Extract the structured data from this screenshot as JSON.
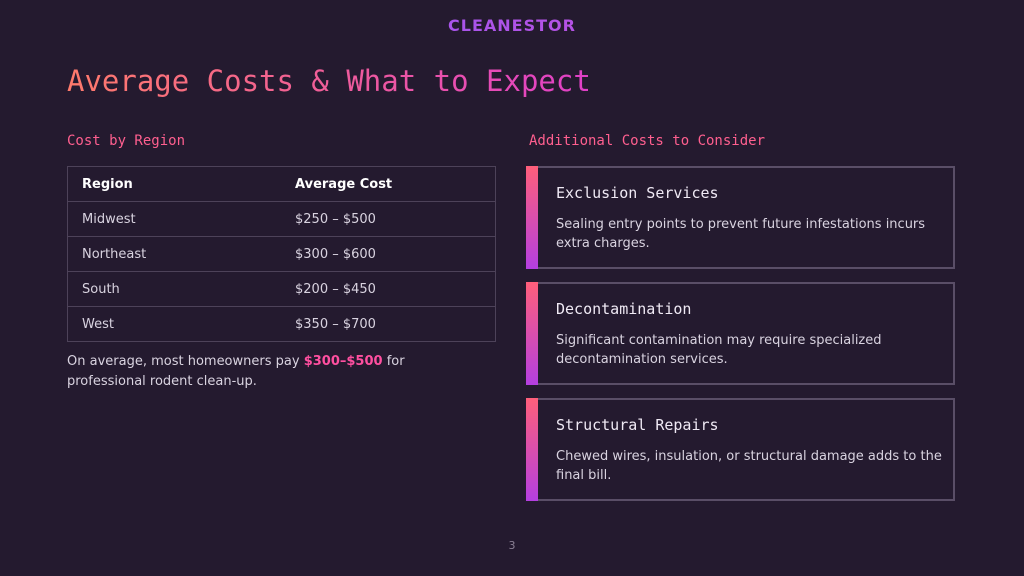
{
  "header": {
    "logo": "CLEANESTOR",
    "title": "Average Costs & What to Expect"
  },
  "left": {
    "heading": "Cost by Region",
    "table": {
      "columns": [
        "Region",
        "Average Cost"
      ],
      "rows": [
        [
          "Midwest",
          "$250 – $500"
        ],
        [
          "Northeast",
          "$300 – $600"
        ],
        [
          "South",
          "$200 – $450"
        ],
        [
          "West",
          "$350 – $700"
        ]
      ]
    },
    "summary": {
      "before": "On average, most homeowners pay ",
      "highlight": "$300–$500",
      "after": " for professional rodent clean-up."
    }
  },
  "right": {
    "heading": "Additional Costs to Consider",
    "cards": [
      {
        "title": "Exclusion Services",
        "text": "Sealing entry points to prevent future infestations incurs extra charges."
      },
      {
        "title": "Decontamination",
        "text": "Significant contamination may require specialized decontamination services."
      },
      {
        "title": "Structural Repairs",
        "text": "Chewed wires, insulation, or structural damage adds to the final bill."
      }
    ]
  },
  "footer": {
    "page": "3"
  }
}
